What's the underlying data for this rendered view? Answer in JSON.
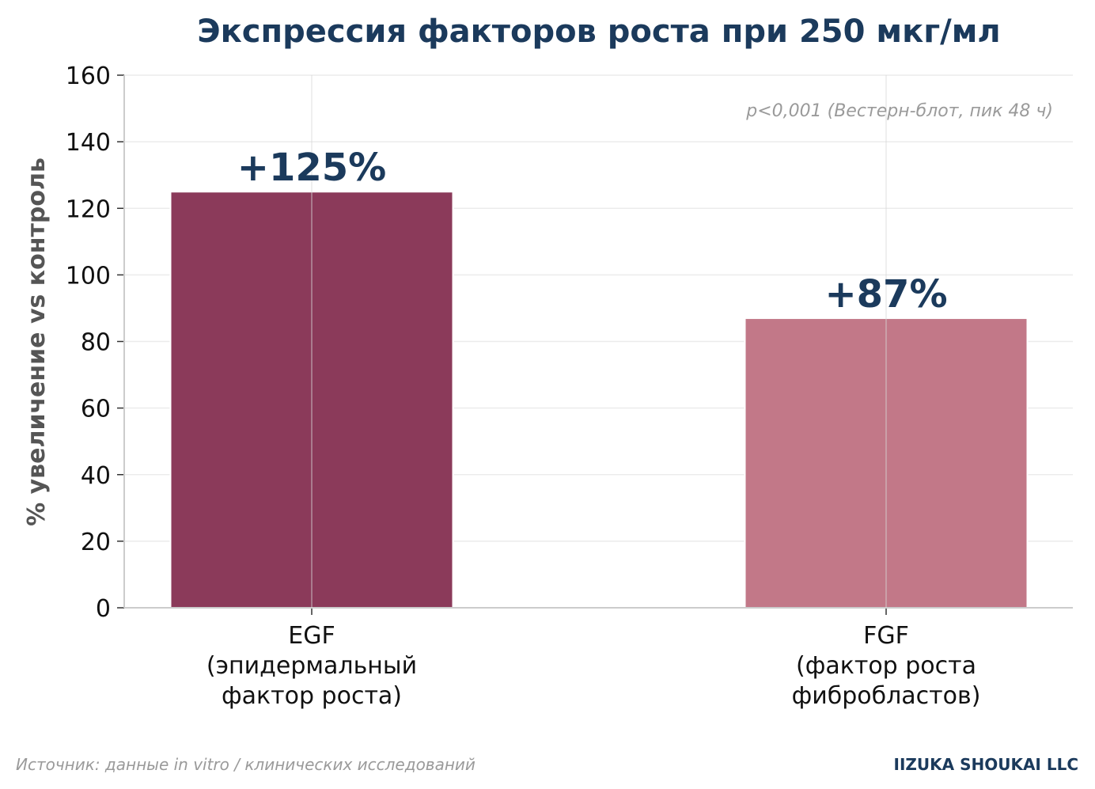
{
  "chart_data": {
    "type": "bar",
    "title": "Экспрессия факторов роста при 250 мкг/мл",
    "xlabel": "",
    "ylabel": "% увеличение vs контроль",
    "ylim": [
      0,
      160
    ],
    "yticks": [
      0,
      20,
      40,
      60,
      80,
      100,
      120,
      140,
      160
    ],
    "grid": true,
    "categories": [
      [
        "EGF",
        "(эпидермальный",
        "фактор роста)"
      ],
      [
        "FGF",
        "(фактор роста",
        "фибробластов)"
      ]
    ],
    "values": [
      125,
      87
    ],
    "data_labels": [
      "+125%",
      "+87%"
    ],
    "bar_colors": [
      "#8b3a5a",
      "#c27888"
    ],
    "annotation": "p<0,001 (Вестерн-блот, пик 48 ч)"
  },
  "footer": {
    "source": "Источник: данные in vitro / клинических исследований",
    "brand": "IIZUKA SHOUKAI LLC"
  },
  "colors": {
    "title": "#1b3a5c",
    "axis": "#cccccc",
    "grid": "#ececec"
  }
}
